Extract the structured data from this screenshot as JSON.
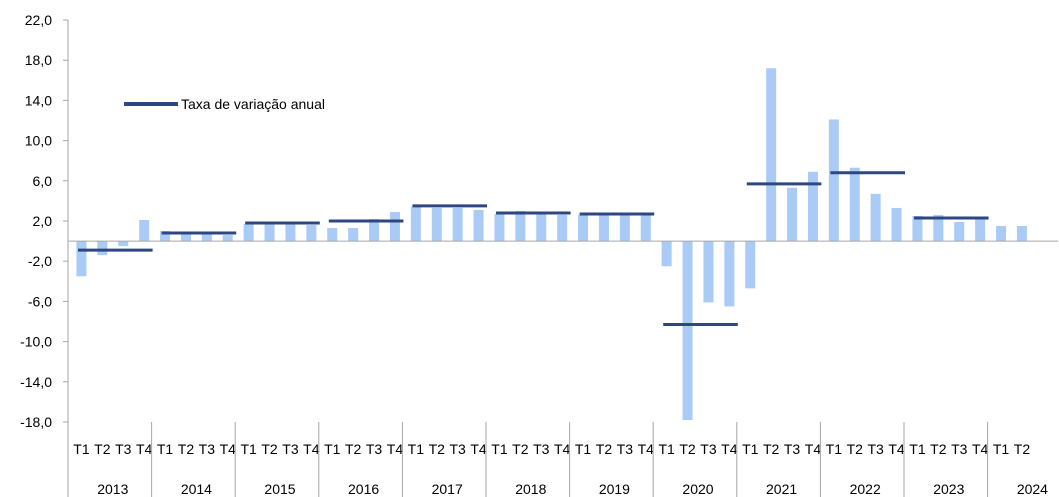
{
  "chart_data": {
    "type": "bar",
    "title": "",
    "xlabel": "",
    "ylabel": "",
    "ylim": [
      -18,
      22
    ],
    "y_ticks": [
      "22,0",
      "18,0",
      "14,0",
      "10,0",
      "6,0",
      "2,0",
      "-2,0",
      "-6,0",
      "-10,0",
      "-14,0",
      "-18,0"
    ],
    "grid": false,
    "legend_position": "top-left",
    "colors": {
      "bars": "#a9cbf5",
      "annual_line": "#2e4780",
      "axis": "#a6a6a6"
    },
    "years": [
      {
        "label": "2013",
        "quarters": [
          "T1",
          "T2",
          "T3",
          "T4"
        ],
        "values": [
          -3.5,
          -1.4,
          -0.5,
          2.1
        ],
        "annual": -0.9
      },
      {
        "label": "2014",
        "quarters": [
          "T1",
          "T2",
          "T3",
          "T4"
        ],
        "values": [
          1.0,
          0.8,
          0.8,
          0.6
        ],
        "annual": 0.8
      },
      {
        "label": "2015",
        "quarters": [
          "T1",
          "T2",
          "T3",
          "T4"
        ],
        "values": [
          1.7,
          1.7,
          1.7,
          1.6
        ],
        "annual": 1.8
      },
      {
        "label": "2016",
        "quarters": [
          "T1",
          "T2",
          "T3",
          "T4"
        ],
        "values": [
          1.3,
          1.3,
          2.2,
          2.9
        ],
        "annual": 2.0
      },
      {
        "label": "2017",
        "quarters": [
          "T1",
          "T2",
          "T3",
          "T4"
        ],
        "values": [
          3.4,
          3.3,
          3.3,
          3.1
        ],
        "annual": 3.5
      },
      {
        "label": "2018",
        "quarters": [
          "T1",
          "T2",
          "T3",
          "T4"
        ],
        "values": [
          2.7,
          3.0,
          2.8,
          2.6
        ],
        "annual": 2.8
      },
      {
        "label": "2019",
        "quarters": [
          "T1",
          "T2",
          "T3",
          "T4"
        ],
        "values": [
          2.6,
          2.6,
          2.6,
          2.7
        ],
        "annual": 2.7
      },
      {
        "label": "2020",
        "quarters": [
          "T1",
          "T2",
          "T3",
          "T4"
        ],
        "values": [
          -2.5,
          -17.8,
          -6.1,
          -6.5
        ],
        "annual": -8.3
      },
      {
        "label": "2021",
        "quarters": [
          "T1",
          "T2",
          "T3",
          "T4"
        ],
        "values": [
          -4.7,
          17.2,
          5.3,
          6.9
        ],
        "annual": 5.7
      },
      {
        "label": "2022",
        "quarters": [
          "T1",
          "T2",
          "T3",
          "T4"
        ],
        "values": [
          12.1,
          7.3,
          4.7,
          3.3
        ],
        "annual": 6.8
      },
      {
        "label": "2023",
        "quarters": [
          "T1",
          "T2",
          "T3",
          "T4"
        ],
        "values": [
          2.5,
          2.6,
          1.9,
          2.2
        ],
        "annual": 2.3
      },
      {
        "label": "2024",
        "quarters": [
          "T1",
          "T2"
        ],
        "values": [
          1.5,
          1.5
        ],
        "annual": null
      }
    ],
    "legend": {
      "annual_label": "Taxa de variação anual"
    }
  }
}
